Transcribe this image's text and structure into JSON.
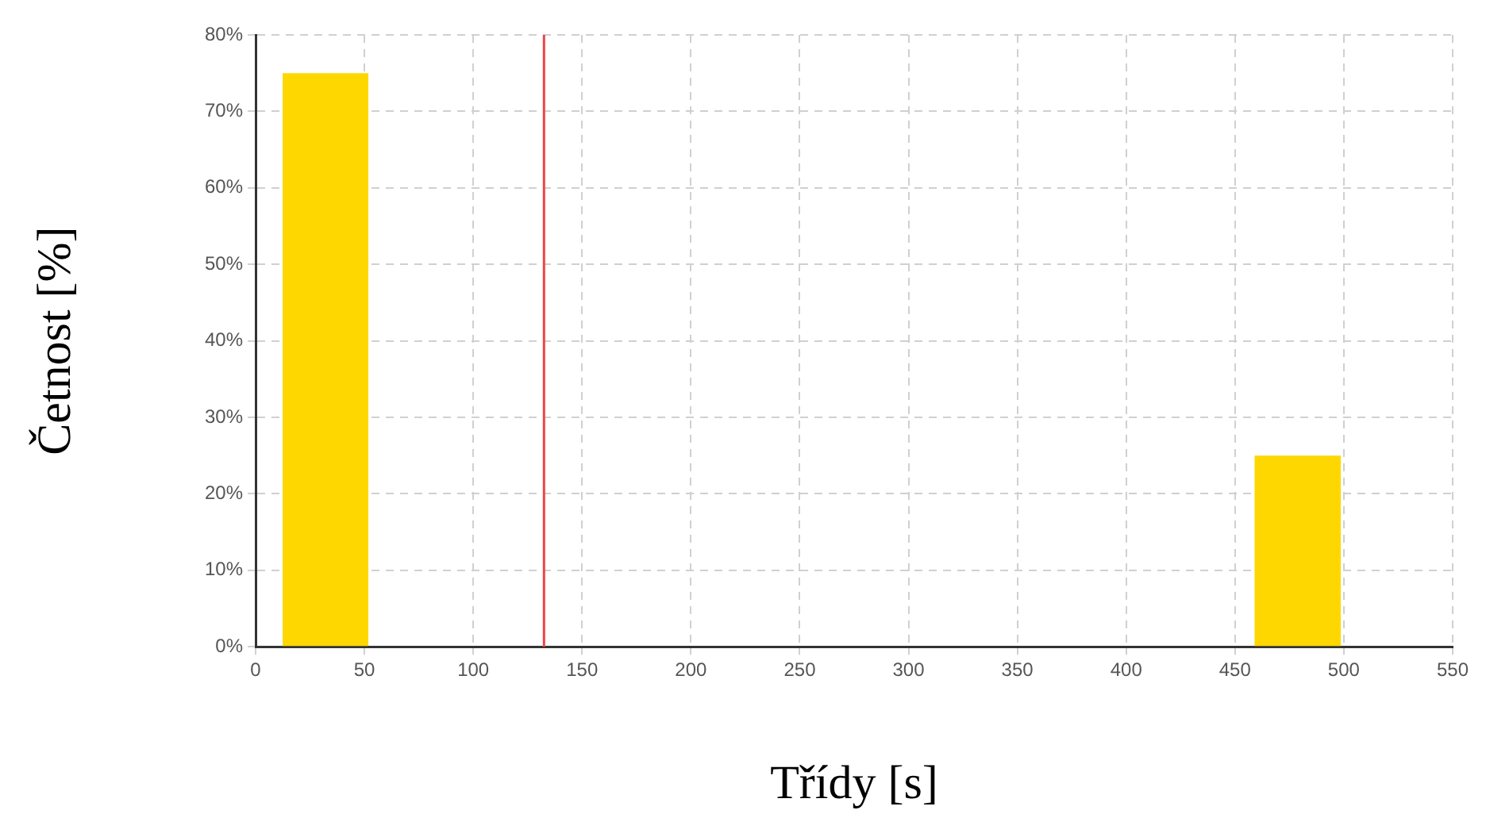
{
  "chart_data": {
    "type": "histogram",
    "xlabel": "Třídy [s]",
    "ylabel": "Četnost [%]",
    "bins": [
      12.4,
      51.8,
      459,
      498.6
    ],
    "values": [
      75,
      0,
      25
    ],
    "color": "#ffd700",
    "xlim": [
      0,
      550
    ],
    "xticks": [
      0,
      50,
      100,
      150,
      200,
      250,
      300,
      350,
      400,
      450,
      500,
      550
    ],
    "ylim": [
      0,
      80
    ],
    "yticks": [
      {
        "value": 0,
        "label": "0%"
      },
      {
        "value": 10,
        "label": "10%"
      },
      {
        "value": 20,
        "label": "20%"
      },
      {
        "value": 30,
        "label": "30%"
      },
      {
        "value": 40,
        "label": "40%"
      },
      {
        "value": 50,
        "label": "50%"
      },
      {
        "value": 60,
        "label": "60%"
      },
      {
        "value": 70,
        "label": "70%"
      },
      {
        "value": 80,
        "label": "80%"
      }
    ],
    "ref_lines": [
      {
        "axis": "x",
        "value": 132.5,
        "color": "#ef4444"
      }
    ],
    "grid": true,
    "legend": false
  }
}
